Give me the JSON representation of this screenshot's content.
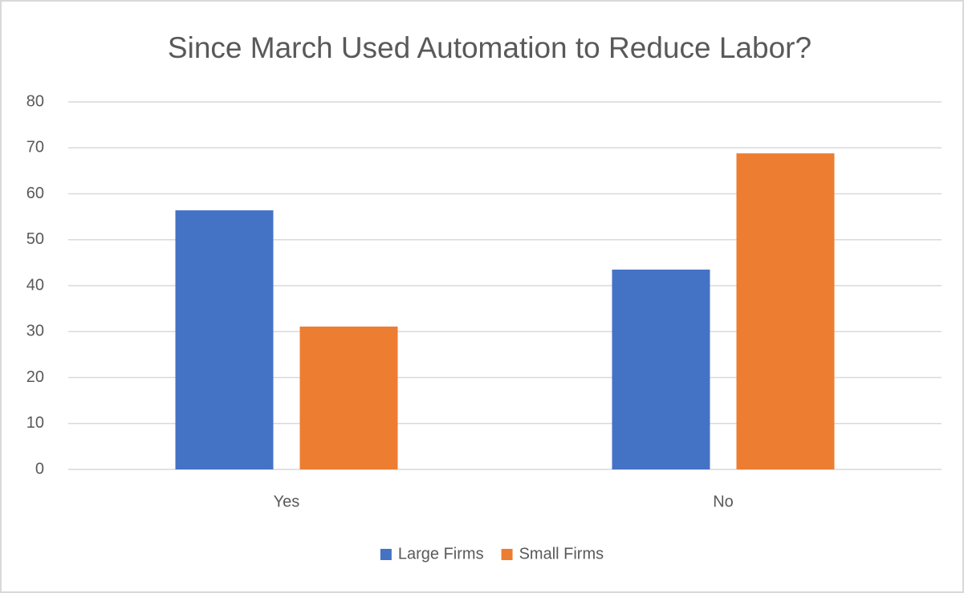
{
  "chart_data": {
    "type": "bar",
    "title": "Since March Used Automation to Reduce Labor?",
    "categories": [
      "Yes",
      "No"
    ],
    "series": [
      {
        "name": "Large Firms",
        "color": "#4472c4",
        "values": [
          56.4,
          43.5
        ]
      },
      {
        "name": "Small Firms",
        "color": "#ed7d31",
        "values": [
          31.1,
          68.8
        ]
      }
    ],
    "ylim": [
      0,
      80
    ],
    "yticks": [
      0,
      10,
      20,
      30,
      40,
      50,
      60,
      70,
      80
    ],
    "grid": true,
    "legend": "bottom"
  }
}
